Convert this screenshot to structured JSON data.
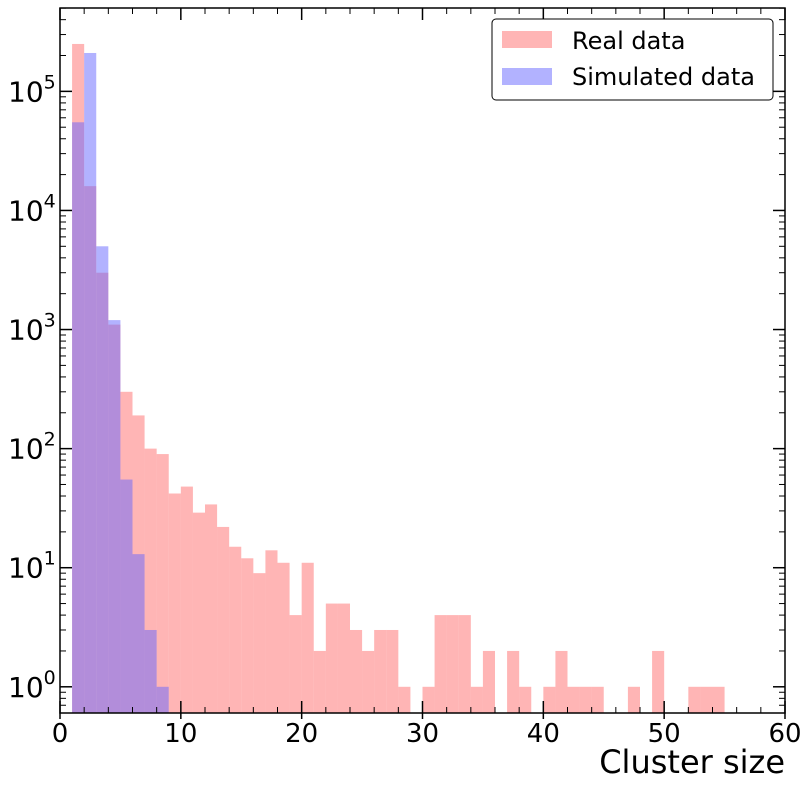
{
  "chart_data": {
    "type": "histogram",
    "xlabel": "Cluster size",
    "ylabel": "",
    "xlim": [
      0,
      60
    ],
    "ylim_log10": [
      -0.22,
      5.7
    ],
    "yscale": "log",
    "bin_width": 1,
    "grid": false,
    "legend_position": "top-right",
    "xticks": [
      "0",
      "10",
      "20",
      "30",
      "40",
      "50",
      "60"
    ],
    "yticks": [
      {
        "base": "10",
        "exp": "0"
      },
      {
        "base": "10",
        "exp": "1"
      },
      {
        "base": "10",
        "exp": "2"
      },
      {
        "base": "10",
        "exp": "3"
      },
      {
        "base": "10",
        "exp": "4"
      },
      {
        "base": "10",
        "exp": "5"
      }
    ],
    "series": [
      {
        "name": "Real data",
        "color": "#ff6b6b",
        "alpha": 0.5,
        "bins": [
          {
            "x": 1,
            "count": 250000
          },
          {
            "x": 2,
            "count": 16000
          },
          {
            "x": 3,
            "count": 3000
          },
          {
            "x": 4,
            "count": 1100
          },
          {
            "x": 5,
            "count": 300
          },
          {
            "x": 6,
            "count": 190
          },
          {
            "x": 7,
            "count": 100
          },
          {
            "x": 8,
            "count": 90
          },
          {
            "x": 9,
            "count": 42
          },
          {
            "x": 10,
            "count": 48
          },
          {
            "x": 11,
            "count": 29
          },
          {
            "x": 12,
            "count": 34
          },
          {
            "x": 13,
            "count": 22
          },
          {
            "x": 14,
            "count": 15
          },
          {
            "x": 15,
            "count": 12
          },
          {
            "x": 16,
            "count": 9
          },
          {
            "x": 17,
            "count": 14
          },
          {
            "x": 18,
            "count": 11
          },
          {
            "x": 19,
            "count": 4
          },
          {
            "x": 20,
            "count": 11
          },
          {
            "x": 21,
            "count": 2
          },
          {
            "x": 22,
            "count": 5
          },
          {
            "x": 23,
            "count": 5
          },
          {
            "x": 24,
            "count": 3
          },
          {
            "x": 25,
            "count": 2
          },
          {
            "x": 26,
            "count": 3
          },
          {
            "x": 27,
            "count": 3
          },
          {
            "x": 28,
            "count": 1
          },
          {
            "x": 30,
            "count": 1
          },
          {
            "x": 31,
            "count": 4
          },
          {
            "x": 32,
            "count": 4
          },
          {
            "x": 33,
            "count": 4
          },
          {
            "x": 34,
            "count": 1
          },
          {
            "x": 35,
            "count": 2
          },
          {
            "x": 37,
            "count": 2
          },
          {
            "x": 38,
            "count": 1
          },
          {
            "x": 40,
            "count": 1
          },
          {
            "x": 41,
            "count": 2
          },
          {
            "x": 42,
            "count": 1
          },
          {
            "x": 43,
            "count": 1
          },
          {
            "x": 44,
            "count": 1
          },
          {
            "x": 47,
            "count": 1
          },
          {
            "x": 49,
            "count": 2
          },
          {
            "x": 52,
            "count": 1
          },
          {
            "x": 53,
            "count": 1
          },
          {
            "x": 54,
            "count": 1
          }
        ]
      },
      {
        "name": "Simulated data",
        "color": "#6666ff",
        "alpha": 0.5,
        "bins": [
          {
            "x": 1,
            "count": 55000
          },
          {
            "x": 2,
            "count": 210000
          },
          {
            "x": 3,
            "count": 5000
          },
          {
            "x": 4,
            "count": 1200
          },
          {
            "x": 5,
            "count": 55
          },
          {
            "x": 6,
            "count": 13
          },
          {
            "x": 7,
            "count": 3
          },
          {
            "x": 8,
            "count": 1
          }
        ]
      }
    ]
  }
}
